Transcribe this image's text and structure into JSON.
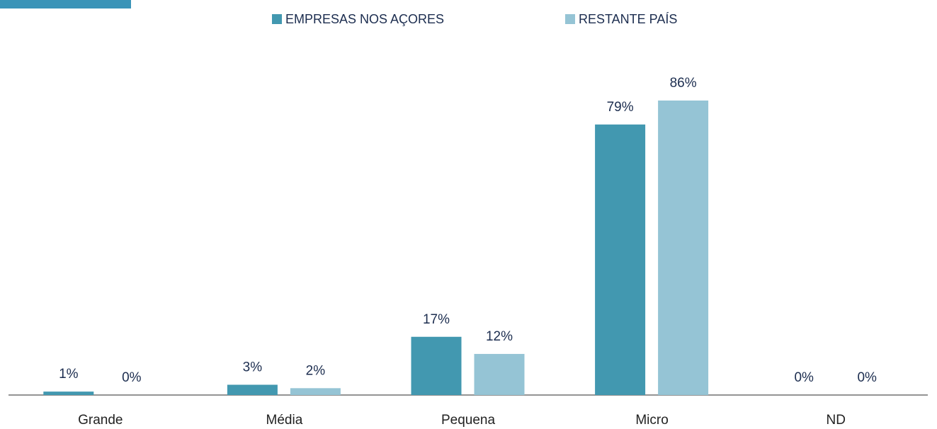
{
  "chart_data": {
    "type": "bar",
    "categories": [
      "Grande",
      "Média",
      "Pequena",
      "Micro",
      "ND"
    ],
    "series": [
      {
        "name": "EMPRESAS NOS AÇORES",
        "color": "#4298b0",
        "values": [
          1,
          3,
          17,
          79,
          0
        ],
        "value_labels": [
          "1%",
          "3%",
          "17%",
          "79%",
          "0%"
        ]
      },
      {
        "name": "RESTANTE PAÍS",
        "color": "#95c4d5",
        "values": [
          0,
          2,
          12,
          86,
          0
        ],
        "value_labels": [
          "0%",
          "2%",
          "12%",
          "86%",
          "0%"
        ]
      }
    ],
    "legend": "top"
  }
}
